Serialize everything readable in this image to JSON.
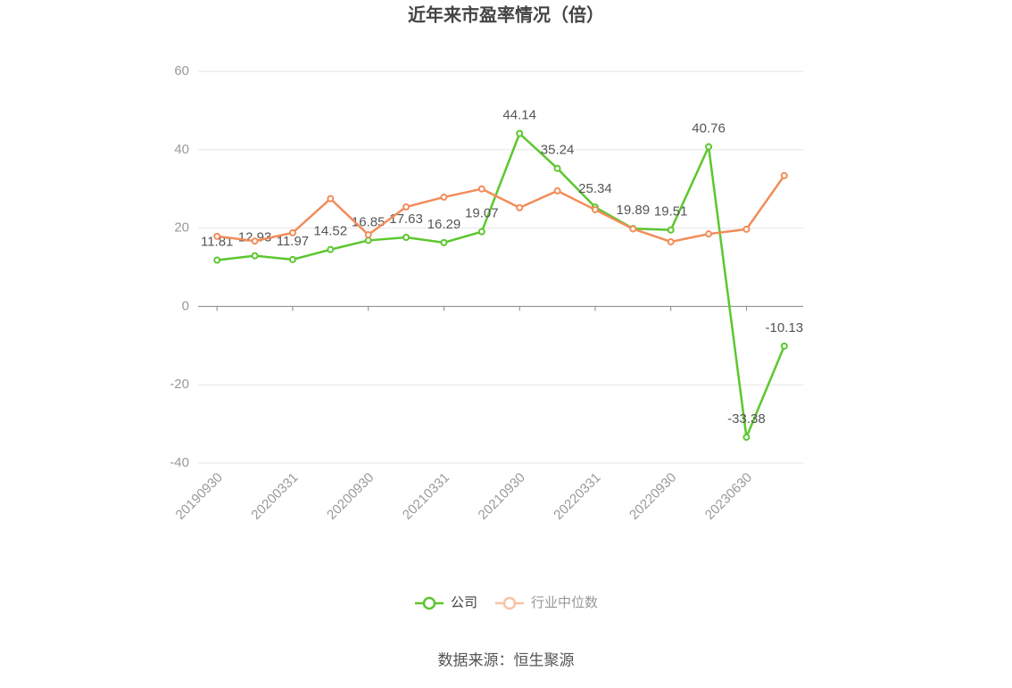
{
  "chart_data": {
    "type": "line",
    "title": "近年来市盈率情况（倍）",
    "categories": [
      "20190930",
      null,
      "20200331",
      null,
      "20200930",
      null,
      "20210331",
      null,
      "20210930",
      null,
      "20220331",
      null,
      "20220930",
      null,
      "20230630",
      null
    ],
    "series": [
      {
        "name": "公司",
        "color": "#5cc72e",
        "values": [
          11.81,
          12.93,
          11.97,
          14.52,
          16.85,
          17.63,
          16.29,
          19.07,
          44.14,
          35.24,
          25.34,
          19.89,
          19.51,
          40.76,
          -33.38,
          -10.13
        ],
        "show_labels": true
      },
      {
        "name": "行业中位数",
        "color": "#f28c5a",
        "values": [
          17.9,
          16.7,
          18.8,
          27.5,
          18.3,
          25.4,
          27.9,
          30.0,
          25.2,
          29.5,
          24.7,
          19.8,
          16.5,
          18.5,
          19.7,
          33.4
        ],
        "show_labels": false
      }
    ],
    "ylim": [
      -40,
      60
    ],
    "yticks": [
      -40,
      -20,
      0,
      20,
      40,
      60
    ],
    "grid": true,
    "legend": "bottom",
    "source": "数据来源：恒生聚源"
  }
}
